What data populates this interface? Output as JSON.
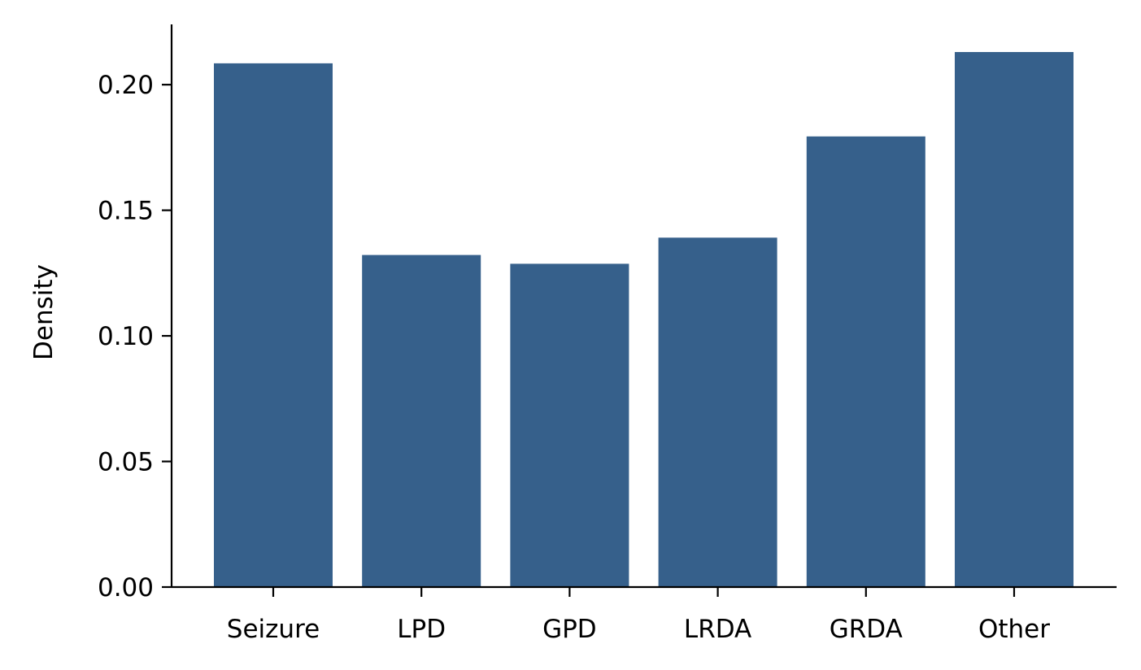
{
  "chart_data": {
    "type": "bar",
    "title": "",
    "xlabel": "",
    "ylabel": "Density",
    "categories": [
      "Seizure",
      "LPD",
      "GPD",
      "LRDA",
      "GRDA",
      "Other"
    ],
    "values": [
      0.2085,
      0.1322,
      0.1287,
      0.1391,
      0.1794,
      0.213
    ],
    "ylim": [
      0,
      0.224
    ],
    "yticks": [
      "0.00",
      "0.05",
      "0.10",
      "0.15",
      "0.20"
    ],
    "bar_color": "#36608b",
    "grid": false,
    "legend": "none"
  }
}
